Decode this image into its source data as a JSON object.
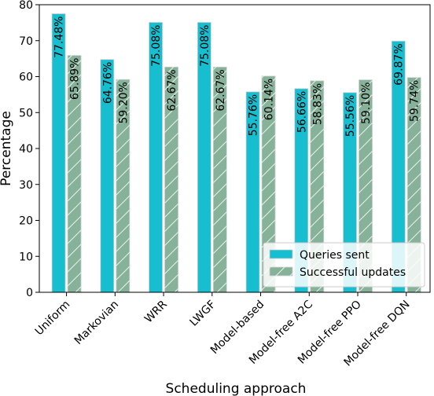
{
  "chart_data": {
    "type": "bar",
    "xlabel": "Scheduling approach",
    "ylabel": "Percentage",
    "ylim": [
      0,
      80
    ],
    "yticks": [
      0,
      10,
      20,
      30,
      40,
      50,
      60,
      70,
      80
    ],
    "grid": false,
    "legend_position": "bottom-right",
    "categories": [
      "Uniform",
      "Markovian",
      "WRR",
      "LWGF",
      "Model-based",
      "Model-free A2C",
      "Model-free PPO",
      "Model-free DQN"
    ],
    "series": [
      {
        "name": "Queries sent",
        "color": "#17becf",
        "hatch": "none",
        "values": [
          77.48,
          64.76,
          75.08,
          75.08,
          55.76,
          56.66,
          55.56,
          69.87
        ],
        "labels": [
          "77.48%",
          "64.76%",
          "75.08%",
          "75.08%",
          "55.76%",
          "56.66%",
          "55.56%",
          "69.87%"
        ]
      },
      {
        "name": "Successful updates",
        "color": "#86b29a",
        "hatch": "diagonal",
        "values": [
          65.89,
          59.2,
          62.67,
          62.67,
          60.14,
          58.83,
          59.1,
          59.74
        ],
        "labels": [
          "65.89%",
          "59.20%",
          "62.67%",
          "62.67%",
          "60.14%",
          "58.83%",
          "59.10%",
          "59.74%"
        ]
      }
    ]
  }
}
